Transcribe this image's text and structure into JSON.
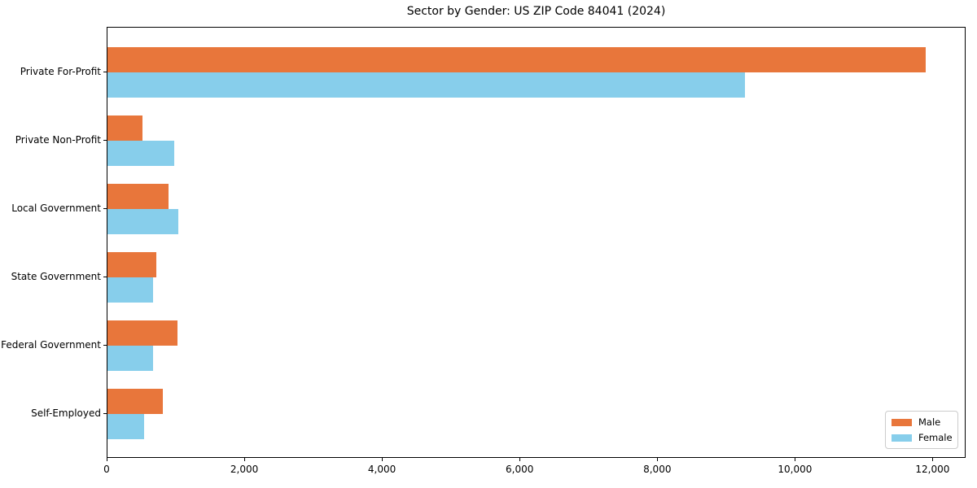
{
  "chart_data": {
    "type": "bar",
    "orientation": "horizontal",
    "title": "Sector by Gender: US ZIP Code 84041 (2024)",
    "categories": [
      "Private For-Profit",
      "Private Non-Profit",
      "Local Government",
      "State Government",
      "Federal Government",
      "Self-Employed"
    ],
    "series": [
      {
        "name": "Male",
        "color": "#e8763b",
        "values": [
          11890,
          510,
          890,
          715,
          1020,
          800
        ]
      },
      {
        "name": "Female",
        "color": "#87ceeb",
        "values": [
          9260,
          965,
          1030,
          660,
          660,
          535
        ]
      }
    ],
    "xlabel": "",
    "ylabel": "",
    "xlim": [
      0,
      12480
    ],
    "xticks": [
      0,
      2000,
      4000,
      6000,
      8000,
      10000,
      12000
    ],
    "xtick_labels": [
      "0",
      "2,000",
      "4,000",
      "6,000",
      "8,000",
      "10,000",
      "12,000"
    ],
    "grid": false,
    "legend_position": "lower right"
  }
}
